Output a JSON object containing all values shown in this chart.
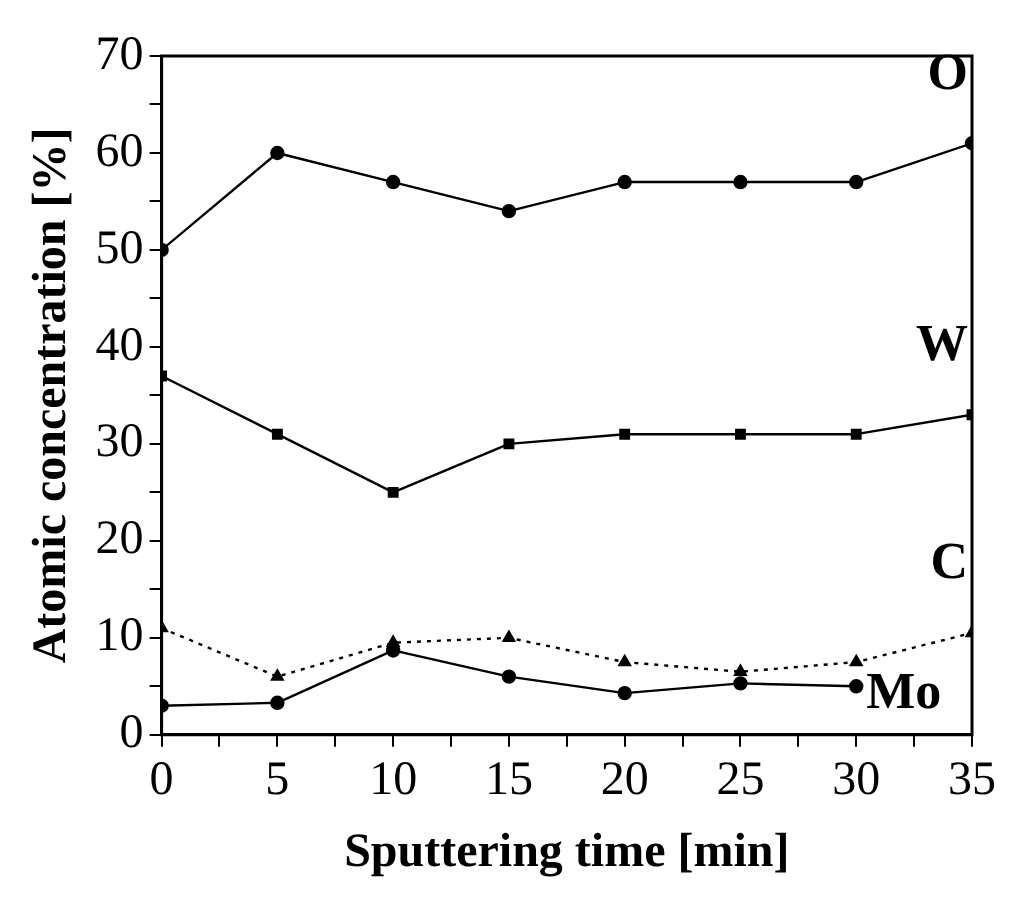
{
  "chart_data": {
    "type": "line",
    "xlabel": "Sputtering time [min]",
    "ylabel": "Atomic concentration [%]",
    "x": [
      0,
      5,
      10,
      15,
      20,
      25,
      30,
      35
    ],
    "series": [
      {
        "name": "O",
        "color": "#000000",
        "marker": "circle",
        "line_style": "solid",
        "values": [
          50,
          60,
          57,
          54,
          57,
          57,
          57,
          61
        ]
      },
      {
        "name": "W",
        "color": "#000000",
        "marker": "square",
        "line_style": "solid",
        "values": [
          37,
          31,
          25,
          30,
          31,
          31,
          31,
          33
        ]
      },
      {
        "name": "C",
        "color": "#000000",
        "marker": "triangle",
        "line_style": "dotted",
        "values": [
          11,
          6,
          9.5,
          10,
          7.5,
          6.5,
          7.5,
          10.5
        ]
      },
      {
        "name": "Mo",
        "color": "#000000",
        "marker": "circle",
        "line_style": "solid",
        "values": [
          3,
          3.3,
          8.7,
          6,
          4.3,
          5.3,
          5,
          null
        ]
      }
    ],
    "xlim": [
      0,
      35
    ],
    "ylim": [
      0,
      70
    ],
    "xticks": [
      0,
      {
        "value": 2.5,
        "label": null
      },
      5,
      {
        "value": 7.5,
        "label": null
      },
      10,
      {
        "value": 12.5,
        "label": null
      },
      15,
      {
        "value": 17.5,
        "label": null
      },
      20,
      {
        "value": 22.5,
        "label": null
      },
      25,
      {
        "value": 27.5,
        "label": null
      },
      30,
      {
        "value": 32.5,
        "label": null
      },
      35
    ],
    "yticks": [
      0,
      {
        "value": 5,
        "label": null
      },
      10,
      {
        "value": 15,
        "label": null
      },
      20,
      {
        "value": 25,
        "label": null
      },
      30,
      {
        "value": 35,
        "label": null
      },
      40,
      {
        "value": 45,
        "label": null
      },
      50,
      {
        "value": 55,
        "label": null
      },
      60,
      {
        "value": 65,
        "label": null
      },
      70
    ],
    "grid": false,
    "legend": false
  }
}
